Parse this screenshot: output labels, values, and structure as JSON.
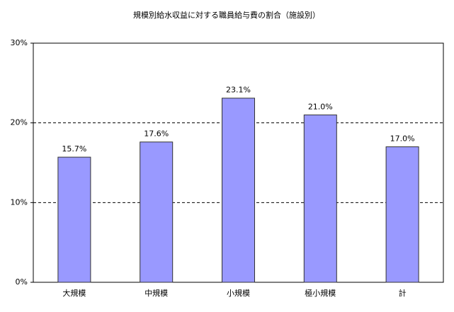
{
  "chart_data": {
    "type": "bar",
    "title": "規模別給水収益に対する職員給与費の割合（施設別）",
    "categories": [
      "大規模",
      "中規模",
      "小規模",
      "極小規模",
      "計"
    ],
    "values": [
      15.7,
      17.6,
      23.1,
      21.0,
      17.0
    ],
    "value_labels": [
      "15.7%",
      "17.6%",
      "23.1%",
      "21.0%",
      "17.0%"
    ],
    "color": "#9999ff",
    "ylim": [
      0,
      30
    ],
    "yticks": [
      {
        "value": 0,
        "label": "0%"
      },
      {
        "value": 10,
        "label": "10%"
      },
      {
        "value": 20,
        "label": "20%"
      },
      {
        "value": 30,
        "label": "30%"
      }
    ],
    "grid": true
  }
}
